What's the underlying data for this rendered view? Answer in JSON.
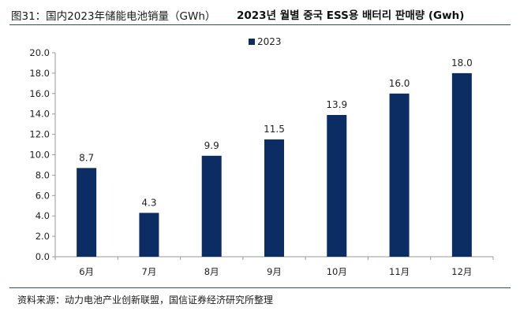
{
  "header": {
    "figure_label": "图31：国内2023年储能电池销量（GWh）",
    "title": "2023년 월별 중국 ESS용 배터리 판매량 (Gwh)"
  },
  "footer": {
    "source": "资料来源：动力电池产业创新联盟，国信证券经济研究所整理"
  },
  "chart_data": {
    "type": "bar",
    "categories": [
      "6月",
      "7月",
      "8月",
      "9月",
      "10月",
      "11月",
      "12月"
    ],
    "series": [
      {
        "name": "2023",
        "values": [
          8.7,
          4.3,
          9.9,
          11.5,
          13.9,
          16.0,
          18.0
        ],
        "color": "#0b2d63"
      }
    ],
    "data_labels": [
      "8.7",
      "4.3",
      "9.9",
      "11.5",
      "13.9",
      "16.0",
      "18.0"
    ],
    "y_ticks": [
      "0.0",
      "2.0",
      "4.0",
      "6.0",
      "8.0",
      "10.0",
      "12.0",
      "14.0",
      "16.0",
      "18.0",
      "20.0"
    ],
    "ylim": [
      0,
      20
    ],
    "grid": false,
    "legend_position": "top-center"
  }
}
